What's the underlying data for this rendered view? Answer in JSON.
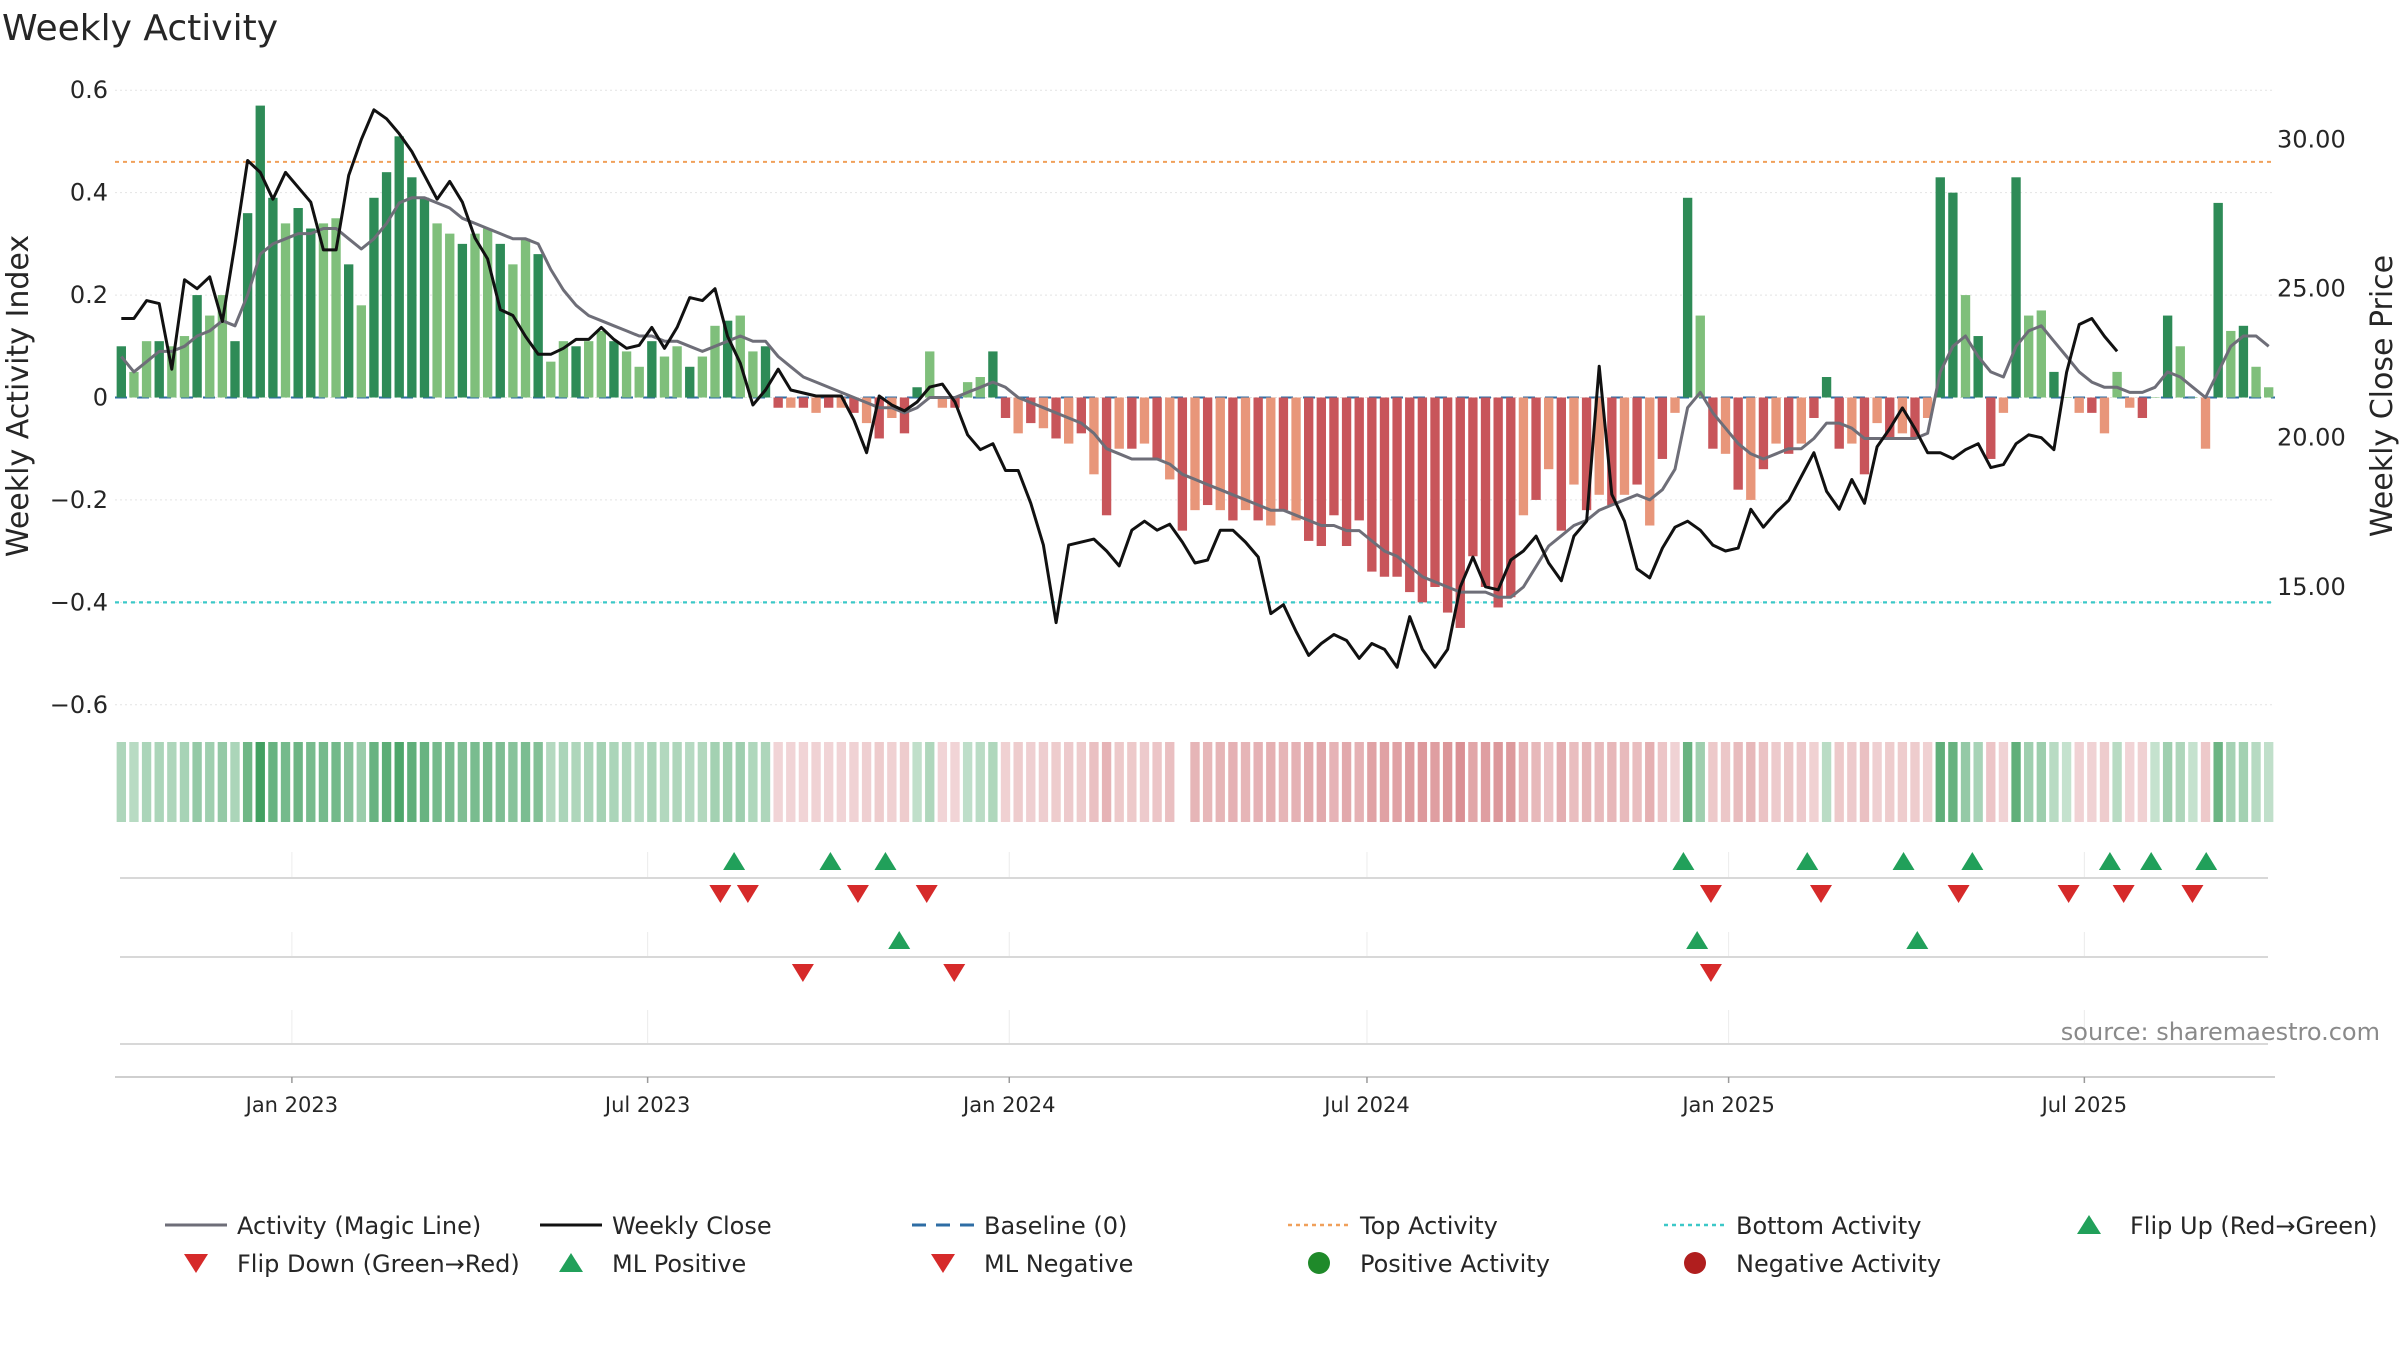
{
  "chart_data": {
    "type": "bar",
    "title": "Weekly Activity",
    "ylabel": "Weekly Activity Index",
    "y2label": "Weekly Close Price",
    "source": "source: sharemaestro.com",
    "ylim": [
      -0.62,
      0.62
    ],
    "y2lim": [
      10.7,
      32.0
    ],
    "yticks": [
      0.6,
      0.4,
      0.2,
      0,
      -0.2,
      -0.4,
      -0.6
    ],
    "yticklabels": [
      "0.6",
      "0.4",
      "0.2",
      "0",
      "−0.2",
      "−0.4",
      "−0.6"
    ],
    "y2ticks": [
      30,
      25,
      20,
      15
    ],
    "y2ticklabels": [
      "30.00",
      "25.00",
      "20.00",
      "15.00"
    ],
    "x_start": "2022-10-03",
    "x_end": "2025-10-06",
    "xticks": [
      {
        "date": "2023-01-01",
        "label": "Jan 2023"
      },
      {
        "date": "2023-07-01",
        "label": "Jul 2023"
      },
      {
        "date": "2024-01-01",
        "label": "Jan 2024"
      },
      {
        "date": "2024-07-01",
        "label": "Jul 2024"
      },
      {
        "date": "2025-01-01",
        "label": "Jan 2025"
      },
      {
        "date": "2025-07-01",
        "label": "Jul 2025"
      }
    ],
    "reference_lines": {
      "top": 0.46,
      "bottom": -0.4,
      "baseline": 0
    },
    "weekly_activity": [
      0.1,
      0.05,
      0.11,
      0.11,
      0.1,
      0.12,
      0.2,
      0.16,
      0.2,
      0.11,
      0.36,
      0.57,
      0.39,
      0.34,
      0.37,
      0.33,
      0.34,
      0.35,
      0.26,
      0.18,
      0.39,
      0.44,
      0.51,
      0.43,
      0.39,
      0.34,
      0.32,
      0.3,
      0.32,
      0.33,
      0.3,
      0.26,
      0.31,
      0.28,
      0.07,
      0.11,
      0.1,
      0.11,
      0.13,
      0.11,
      0.09,
      0.06,
      0.11,
      0.08,
      0.1,
      0.06,
      0.08,
      0.14,
      0.15,
      0.16,
      0.09,
      0.1,
      -0.02,
      -0.02,
      -0.02,
      -0.03,
      -0.02,
      -0.02,
      -0.03,
      -0.05,
      -0.08,
      -0.04,
      -0.07,
      0.02,
      0.09,
      -0.02,
      -0.02,
      0.03,
      0.04,
      0.09,
      -0.04,
      -0.07,
      -0.05,
      -0.06,
      -0.08,
      -0.09,
      -0.07,
      -0.15,
      -0.23,
      -0.1,
      -0.1,
      -0.09,
      -0.12,
      -0.16,
      -0.26,
      -0.22,
      -0.21,
      -0.22,
      -0.24,
      -0.22,
      -0.24,
      -0.25,
      -0.22,
      -0.24,
      -0.28,
      -0.29,
      -0.23,
      -0.29,
      -0.24,
      -0.34,
      -0.35,
      -0.35,
      -0.38,
      -0.4,
      -0.37,
      -0.42,
      -0.45,
      -0.31,
      -0.37,
      -0.41,
      -0.39,
      -0.23,
      -0.2,
      -0.14,
      -0.26,
      -0.17,
      -0.22,
      -0.19,
      -0.21,
      -0.19,
      -0.17,
      -0.25,
      -0.12,
      -0.03,
      0.39,
      0.16,
      -0.1,
      -0.11,
      -0.18,
      -0.2,
      -0.14,
      -0.09,
      -0.11,
      -0.09,
      -0.04,
      0.04,
      -0.1,
      -0.09,
      -0.15,
      -0.05,
      -0.08,
      -0.07,
      -0.08,
      -0.04,
      0.43,
      0.4,
      0.2,
      0.12,
      -0.12,
      -0.03,
      0.43,
      0.16,
      0.17,
      0.05,
      0.0,
      -0.03,
      -0.03,
      -0.07,
      0.05,
      -0.02,
      -0.04,
      0.0,
      0.16,
      0.1,
      0.0,
      -0.1,
      0.38,
      0.13,
      0.14,
      0.06,
      0.02
    ],
    "activity_magic_line": [
      0.08,
      0.05,
      0.07,
      0.09,
      0.09,
      0.1,
      0.12,
      0.13,
      0.15,
      0.14,
      0.2,
      0.28,
      0.3,
      0.31,
      0.32,
      0.32,
      0.33,
      0.33,
      0.31,
      0.29,
      0.31,
      0.34,
      0.38,
      0.39,
      0.39,
      0.38,
      0.37,
      0.35,
      0.34,
      0.33,
      0.32,
      0.31,
      0.31,
      0.3,
      0.25,
      0.21,
      0.18,
      0.16,
      0.15,
      0.14,
      0.13,
      0.12,
      0.12,
      0.11,
      0.11,
      0.1,
      0.09,
      0.1,
      0.11,
      0.12,
      0.11,
      0.11,
      0.08,
      0.06,
      0.04,
      0.03,
      0.02,
      0.01,
      0.0,
      -0.01,
      -0.02,
      -0.02,
      -0.03,
      -0.02,
      0.0,
      0.0,
      0.0,
      0.01,
      0.02,
      0.03,
      0.02,
      0.0,
      -0.01,
      -0.02,
      -0.03,
      -0.04,
      -0.05,
      -0.07,
      -0.1,
      -0.11,
      -0.12,
      -0.12,
      -0.12,
      -0.13,
      -0.15,
      -0.16,
      -0.17,
      -0.18,
      -0.19,
      -0.2,
      -0.21,
      -0.22,
      -0.22,
      -0.23,
      -0.24,
      -0.25,
      -0.25,
      -0.26,
      -0.26,
      -0.28,
      -0.3,
      -0.31,
      -0.33,
      -0.35,
      -0.36,
      -0.37,
      -0.38,
      -0.38,
      -0.38,
      -0.39,
      -0.39,
      -0.37,
      -0.33,
      -0.29,
      -0.27,
      -0.25,
      -0.24,
      -0.22,
      -0.21,
      -0.2,
      -0.19,
      -0.2,
      -0.18,
      -0.14,
      -0.02,
      0.01,
      -0.03,
      -0.06,
      -0.09,
      -0.11,
      -0.12,
      -0.11,
      -0.1,
      -0.1,
      -0.08,
      -0.05,
      -0.05,
      -0.06,
      -0.08,
      -0.08,
      -0.08,
      -0.08,
      -0.08,
      -0.07,
      0.05,
      0.1,
      0.12,
      0.08,
      0.05,
      0.04,
      0.1,
      0.13,
      0.14,
      0.11,
      0.08,
      0.05,
      0.03,
      0.02,
      0.02,
      0.01,
      0.01,
      0.02,
      0.05,
      0.04,
      0.02,
      0.0,
      0.05,
      0.1,
      0.12,
      0.12,
      0.1
    ],
    "weekly_close": [
      24.0,
      24.0,
      24.6,
      24.5,
      22.3,
      25.3,
      25.0,
      25.4,
      23.9,
      26.5,
      29.3,
      28.9,
      28.0,
      28.9,
      28.4,
      27.9,
      26.3,
      26.3,
      28.8,
      30.0,
      31.0,
      30.7,
      30.2,
      29.6,
      28.8,
      28.0,
      28.6,
      27.9,
      26.7,
      26.0,
      24.3,
      24.1,
      23.4,
      22.8,
      22.8,
      23.0,
      23.3,
      23.3,
      23.7,
      23.3,
      23.0,
      23.1,
      23.7,
      23.0,
      23.7,
      24.7,
      24.6,
      25.0,
      23.4,
      22.5,
      21.1,
      21.6,
      22.3,
      21.6,
      21.5,
      21.4,
      21.4,
      21.4,
      20.6,
      19.5,
      21.4,
      21.1,
      20.9,
      21.2,
      21.7,
      21.8,
      21.2,
      20.1,
      19.6,
      19.8,
      18.9,
      18.9,
      17.8,
      16.4,
      13.8,
      16.4,
      16.5,
      16.6,
      16.2,
      15.7,
      16.9,
      17.2,
      16.9,
      17.1,
      16.5,
      15.8,
      15.9,
      16.9,
      16.9,
      16.5,
      16.0,
      14.1,
      14.4,
      13.5,
      12.7,
      13.1,
      13.4,
      13.2,
      12.6,
      13.1,
      12.9,
      12.3,
      14.0,
      12.9,
      12.3,
      12.9,
      15.0,
      16.0,
      15.0,
      14.9,
      15.9,
      16.2,
      16.7,
      15.8,
      15.2,
      16.7,
      17.2,
      22.4,
      18.1,
      17.2,
      15.6,
      15.3,
      16.3,
      17.0,
      17.2,
      16.9,
      16.4,
      16.2,
      16.3,
      17.6,
      17.0,
      17.5,
      17.9,
      18.7,
      19.5,
      18.2,
      17.6,
      18.6,
      17.8,
      19.7,
      20.3,
      21.0,
      20.3,
      19.5,
      19.5,
      19.3,
      19.6,
      19.8,
      19.0,
      19.1,
      19.8,
      20.1,
      20.0,
      19.6,
      22.2,
      23.8,
      24.0,
      23.4,
      22.9
    ],
    "band_gap_after_index": 84,
    "signals": {
      "flip_up": [
        "2023-08-14",
        "2023-10-02",
        "2023-10-30",
        "2024-12-09",
        "2025-02-10",
        "2025-03-31",
        "2025-05-05",
        "2025-07-14",
        "2025-08-04",
        "2025-09-01"
      ],
      "flip_down": [
        "2023-08-07",
        "2023-08-21",
        "2023-10-16",
        "2023-11-20",
        "2024-12-23",
        "2025-02-17",
        "2025-04-28",
        "2025-06-23",
        "2025-07-21",
        "2025-08-25"
      ],
      "ml_positive": [
        "2023-11-06",
        "2024-12-16",
        "2025-04-07"
      ],
      "ml_negative": [
        "2023-09-18",
        "2023-12-04",
        "2024-12-23"
      ]
    },
    "colors": {
      "pos_dark": "#2e8b57",
      "pos_light": "#7fbf7b",
      "neg_dark": "#c8555a",
      "neg_light": "#e8967a",
      "magic_line": "#6e6e78",
      "close_line": "#111111",
      "baseline": "#2e6da4",
      "top_line": "#f0a05a",
      "bottom_line": "#3cc8c8",
      "up_marker": "#21a05a",
      "down_marker": "#d62a2a",
      "pos_dot": "#1f8a2a",
      "neg_dot": "#b01e1e"
    },
    "legend": [
      {
        "label": "Activity (Magic Line)",
        "kind": "line",
        "color": "#6e6e78"
      },
      {
        "label": "Weekly Close",
        "kind": "line",
        "color": "#111111"
      },
      {
        "label": "Baseline (0)",
        "kind": "dash",
        "color": "#2e6da4"
      },
      {
        "label": "Top Activity",
        "kind": "dot-line",
        "color": "#f0a05a"
      },
      {
        "label": "Bottom Activity",
        "kind": "dot-line",
        "color": "#3cc8c8"
      },
      {
        "label": "Flip Up (Red→Green)",
        "kind": "tri-up",
        "color": "#21a05a"
      },
      {
        "label": "Flip Down (Green→Red)",
        "kind": "tri-down",
        "color": "#d62a2a"
      },
      {
        "label": "ML Positive",
        "kind": "tri-up",
        "color": "#21a05a"
      },
      {
        "label": "ML Negative",
        "kind": "tri-down",
        "color": "#d62a2a"
      },
      {
        "label": "Positive Activity",
        "kind": "dot",
        "color": "#1f8a2a"
      },
      {
        "label": "Negative Activity",
        "kind": "dot",
        "color": "#b01e1e"
      }
    ]
  }
}
